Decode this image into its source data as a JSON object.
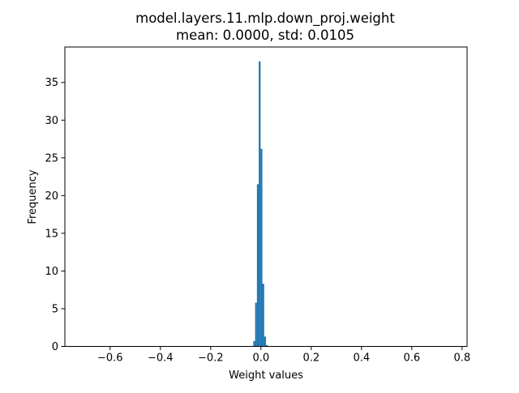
{
  "chart_data": {
    "type": "bar",
    "title": "model.layers.11.mlp.down_proj.weight",
    "subtitle": "mean: 0.0000, std: 0.0105",
    "xlabel": "Weight values",
    "ylabel": "Frequency",
    "xlim": [
      -0.78,
      0.82
    ],
    "ylim": [
      0,
      39.7
    ],
    "xticks": [
      -0.6,
      -0.4,
      -0.2,
      0.0,
      0.2,
      0.4,
      0.6,
      0.8
    ],
    "xtick_labels": [
      "−0.6",
      "−0.4",
      "−0.2",
      "0.0",
      "0.2",
      "0.4",
      "0.6",
      "0.8"
    ],
    "yticks": [
      0,
      5,
      10,
      15,
      20,
      25,
      30,
      35
    ],
    "ytick_labels": [
      "0",
      "5",
      "10",
      "15",
      "20",
      "25",
      "30",
      "35"
    ],
    "grid": false,
    "bar_color": "#1f77b4",
    "bins": [
      {
        "x0": -0.0304,
        "x1": -0.0232,
        "value": 0.7
      },
      {
        "x0": -0.0232,
        "x1": -0.016,
        "value": 5.8
      },
      {
        "x0": -0.016,
        "x1": -0.0088,
        "value": 21.5
      },
      {
        "x0": -0.0088,
        "x1": -0.0016,
        "value": 37.8
      },
      {
        "x0": -0.0016,
        "x1": 0.0056,
        "value": 26.2
      },
      {
        "x0": 0.0056,
        "x1": 0.0128,
        "value": 8.3
      },
      {
        "x0": 0.0128,
        "x1": 0.02,
        "value": 1.3
      },
      {
        "x0": 0.02,
        "x1": 0.0272,
        "value": 0.15
      }
    ]
  }
}
